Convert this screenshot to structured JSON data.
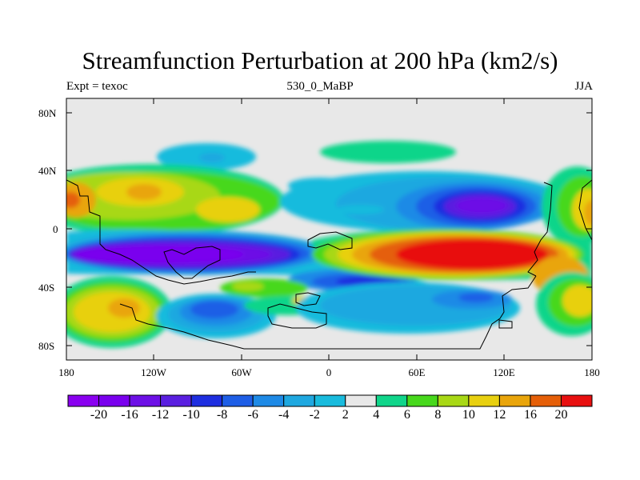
{
  "title": "Streamfunction Perturbation at 200 hPa (km2/s)",
  "subtitle_left": "Expt = texoc",
  "subtitle_center": "530_0_MaBP",
  "subtitle_right": "JJA",
  "y_ticks": [
    "80N",
    "40N",
    "0",
    "40S",
    "80S"
  ],
  "x_ticks": [
    "180",
    "120W",
    "60W",
    "0",
    "60E",
    "120E",
    "180"
  ],
  "colorbar": {
    "labels": [
      "-20",
      "-16",
      "-12",
      "-10",
      "-8",
      "-6",
      "-4",
      "-2",
      "2",
      "4",
      "6",
      "8",
      "10",
      "12",
      "16",
      "20"
    ],
    "colors": [
      "#7a00ee",
      "#6d10e6",
      "#5a1fe0",
      "#1e2ee0",
      "#1e5ee6",
      "#1e8ae6",
      "#1fa8e0",
      "#19bbdd",
      "#e8e8e8",
      "#10d58a",
      "#47d81c",
      "#a8d815",
      "#e8d010",
      "#e9a50b",
      "#e55f08",
      "#e81010"
    ]
  }
}
